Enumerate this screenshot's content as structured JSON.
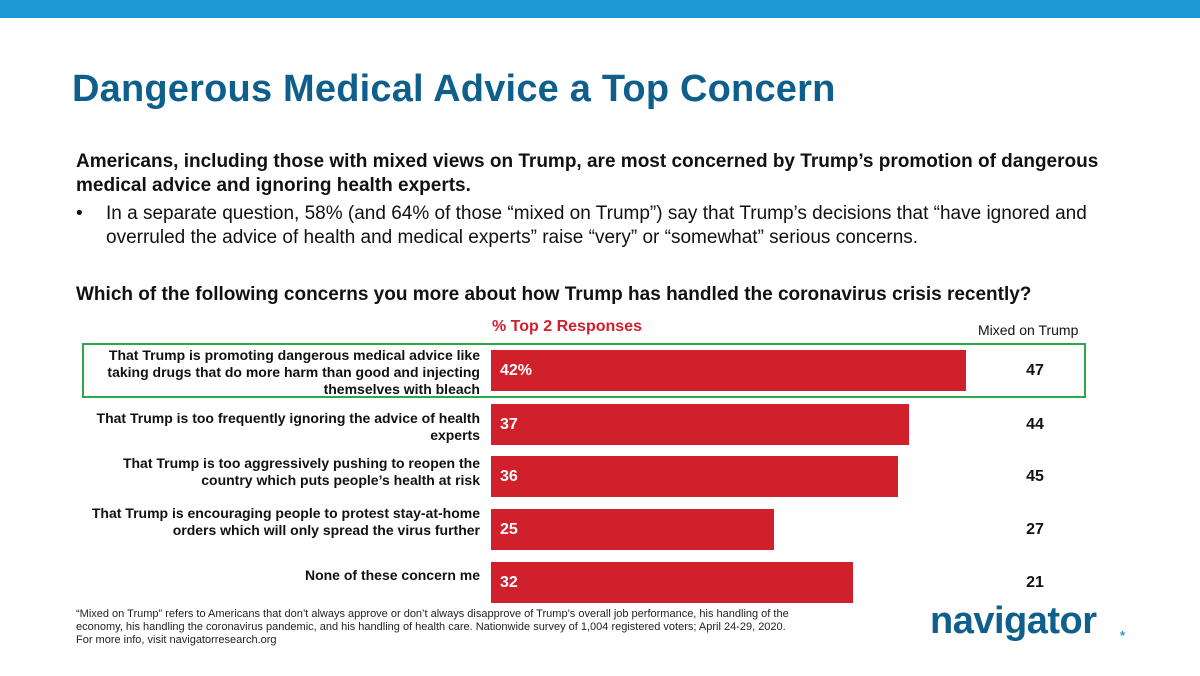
{
  "colors": {
    "top_bar": "#1c9ad6",
    "title": "#0e5f8c",
    "bar": "#d0202b",
    "highlight": "#2aa84a"
  },
  "title": "Dangerous Medical Advice a Top Concern",
  "subtitle": "Americans, including those with mixed views on Trump, are most concerned by Trump’s promotion of dangerous medical advice and ignoring health experts.",
  "bullet": "In a separate question, 58% (and 64% of those “mixed on Trump”) say that Trump’s decisions that “have ignored and overruled the advice of health and medical experts” raise “very” or “somewhat” serious concerns.",
  "bullet_marker": "•",
  "question": "Which of the following concerns you more about how Trump has handled the coronavirus crisis recently?",
  "chart_data": {
    "type": "bar",
    "orientation": "horizontal",
    "series_name": "% Top 2 Responses",
    "xlim": [
      0,
      50
    ],
    "categories": [
      "That Trump is promoting dangerous medical advice like taking drugs that do more harm than good and injecting themselves with bleach",
      "That Trump is too frequently ignoring the advice of health experts",
      "That Trump is too aggressively pushing to reopen the country which puts people’s health at risk",
      "That Trump is encouraging people to protest stay-at-home orders which will only spread the virus further",
      "None of these concern me"
    ],
    "values": [
      42,
      37,
      36,
      25,
      32
    ],
    "value_labels": [
      "42%",
      "37",
      "36",
      "25",
      "32"
    ],
    "mixed_header": "Mixed on Trump",
    "mixed_values": [
      "47",
      "44",
      "45",
      "27",
      "21"
    ],
    "highlighted_index": 0
  },
  "footnote": {
    "line1": "“Mixed on Trump” refers to Americans that don’t always approve or don’t always disapprove of Trump’s overall job performance, his handling of the economy, his handling the coronavirus pandemic, and his handling of health care. Nationwide survey of 1,004 registered voters; April 24-29, 2020.",
    "line2": "For more info, visit navigatorresearch.org"
  },
  "brand": {
    "name": "navigator",
    "mark": "*"
  }
}
